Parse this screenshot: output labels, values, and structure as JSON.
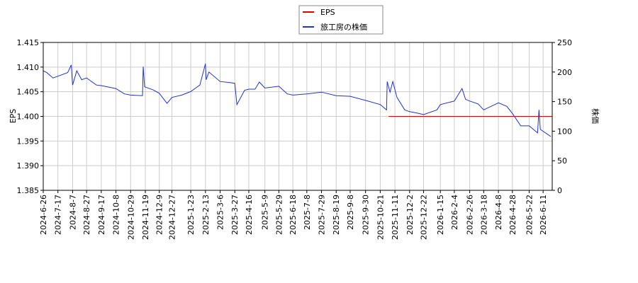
{
  "chart_data": {
    "type": "line",
    "y_label": "EPS",
    "y2_label": "株価",
    "xlim": [
      "2024-6-26",
      "2026-6-24"
    ],
    "xticks": [
      "2024-6-26",
      "2024-7-17",
      "2024-8-7",
      "2024-8-27",
      "2024-9-17",
      "2024-10-8",
      "2024-10-29",
      "2024-11-19",
      "2024-12-9",
      "2024-12-27",
      "2025-1-23",
      "2025-2-13",
      "2025-3-6",
      "2025-3-27",
      "2025-4-16",
      "2025-5-9",
      "2025-5-29",
      "2025-6-18",
      "2025-7-8",
      "2025-7-29",
      "2025-8-19",
      "2025-9-8",
      "2025-9-30",
      "2025-10-21",
      "2025-11-11",
      "2025-12-2",
      "2025-12-22",
      "2026-1-15",
      "2026-2-4",
      "2026-2-26",
      "2026-3-18",
      "2026-4-8",
      "2026-4-28",
      "2026-5-22",
      "2026-6-11"
    ],
    "ylim": [
      1.385,
      1.415
    ],
    "yticks": [
      1.385,
      {
        "value": 1.39,
        "label": "1.390"
      },
      1.395,
      {
        "value": 1.4,
        "label": "1.400"
      },
      1.405,
      {
        "value": 1.41,
        "label": "1.410"
      },
      1.415
    ],
    "y2lim": [
      0,
      250
    ],
    "y2ticks": [
      0,
      50,
      100,
      150,
      200,
      250
    ],
    "grid": true,
    "legend": "top",
    "series": [
      {
        "name": "EPS",
        "color": "#dd0000",
        "x": [
          "2025-11-2",
          "2026-6-24"
        ],
        "values": [
          1.4,
          1.4
        ]
      },
      {
        "name": "旅工房の株価",
        "color": "#2233cc",
        "axis": "y2",
        "x": [
          "2024-6-26",
          "2024-7-1",
          "2024-7-10",
          "2024-7-17",
          "2024-7-31",
          "2024-8-5",
          "2024-8-7",
          "2024-8-13",
          "2024-8-20",
          "2024-8-27",
          "2024-9-10",
          "2024-9-17",
          "2024-10-8",
          "2024-10-20",
          "2024-10-29",
          "2024-11-15",
          "2024-11-16",
          "2024-11-18",
          "2024-11-30",
          "2024-12-9",
          "2024-12-20",
          "2024-12-27",
          "2025-1-10",
          "2025-1-23",
          "2025-2-5",
          "2025-2-13",
          "2025-2-14",
          "2025-2-18",
          "2025-3-6",
          "2025-3-20",
          "2025-3-27",
          "2025-3-30",
          "2025-4-10",
          "2025-4-16",
          "2025-4-25",
          "2025-5-1",
          "2025-5-9",
          "2025-5-29",
          "2025-6-10",
          "2025-6-18",
          "2025-7-8",
          "2025-7-29",
          "2025-8-19",
          "2025-9-8",
          "2025-9-30",
          "2025-10-21",
          "2025-10-30",
          "2025-10-31",
          "2025-11-4",
          "2025-11-8",
          "2025-11-14",
          "2025-11-25",
          "2025-12-2",
          "2025-12-15",
          "2025-12-22",
          "2026-1-10",
          "2026-1-15",
          "2026-2-4",
          "2026-2-15",
          "2026-2-20",
          "2026-2-26",
          "2026-3-10",
          "2026-3-18",
          "2026-4-8",
          "2026-4-20",
          "2026-4-28",
          "2026-5-10",
          "2026-5-22",
          "2026-6-3",
          "2026-6-5",
          "2026-6-7",
          "2026-6-22"
        ],
        "values": [
          202,
          199,
          190,
          193,
          199,
          212,
          178,
          202,
          187,
          190,
          178,
          177,
          172,
          163,
          161,
          160,
          209,
          175,
          170,
          164,
          147,
          157,
          161,
          167,
          178,
          214,
          187,
          200,
          184,
          182,
          181,
          145,
          169,
          171,
          171,
          183,
          173,
          176,
          163,
          161,
          163,
          166,
          160,
          159,
          152,
          145,
          136,
          184,
          166,
          184,
          157,
          136,
          133,
          130,
          128,
          136,
          145,
          151,
          172,
          154,
          151,
          146,
          136,
          148,
          142,
          130,
          109,
          109,
          97,
          136,
          103,
          91
        ]
      }
    ]
  }
}
